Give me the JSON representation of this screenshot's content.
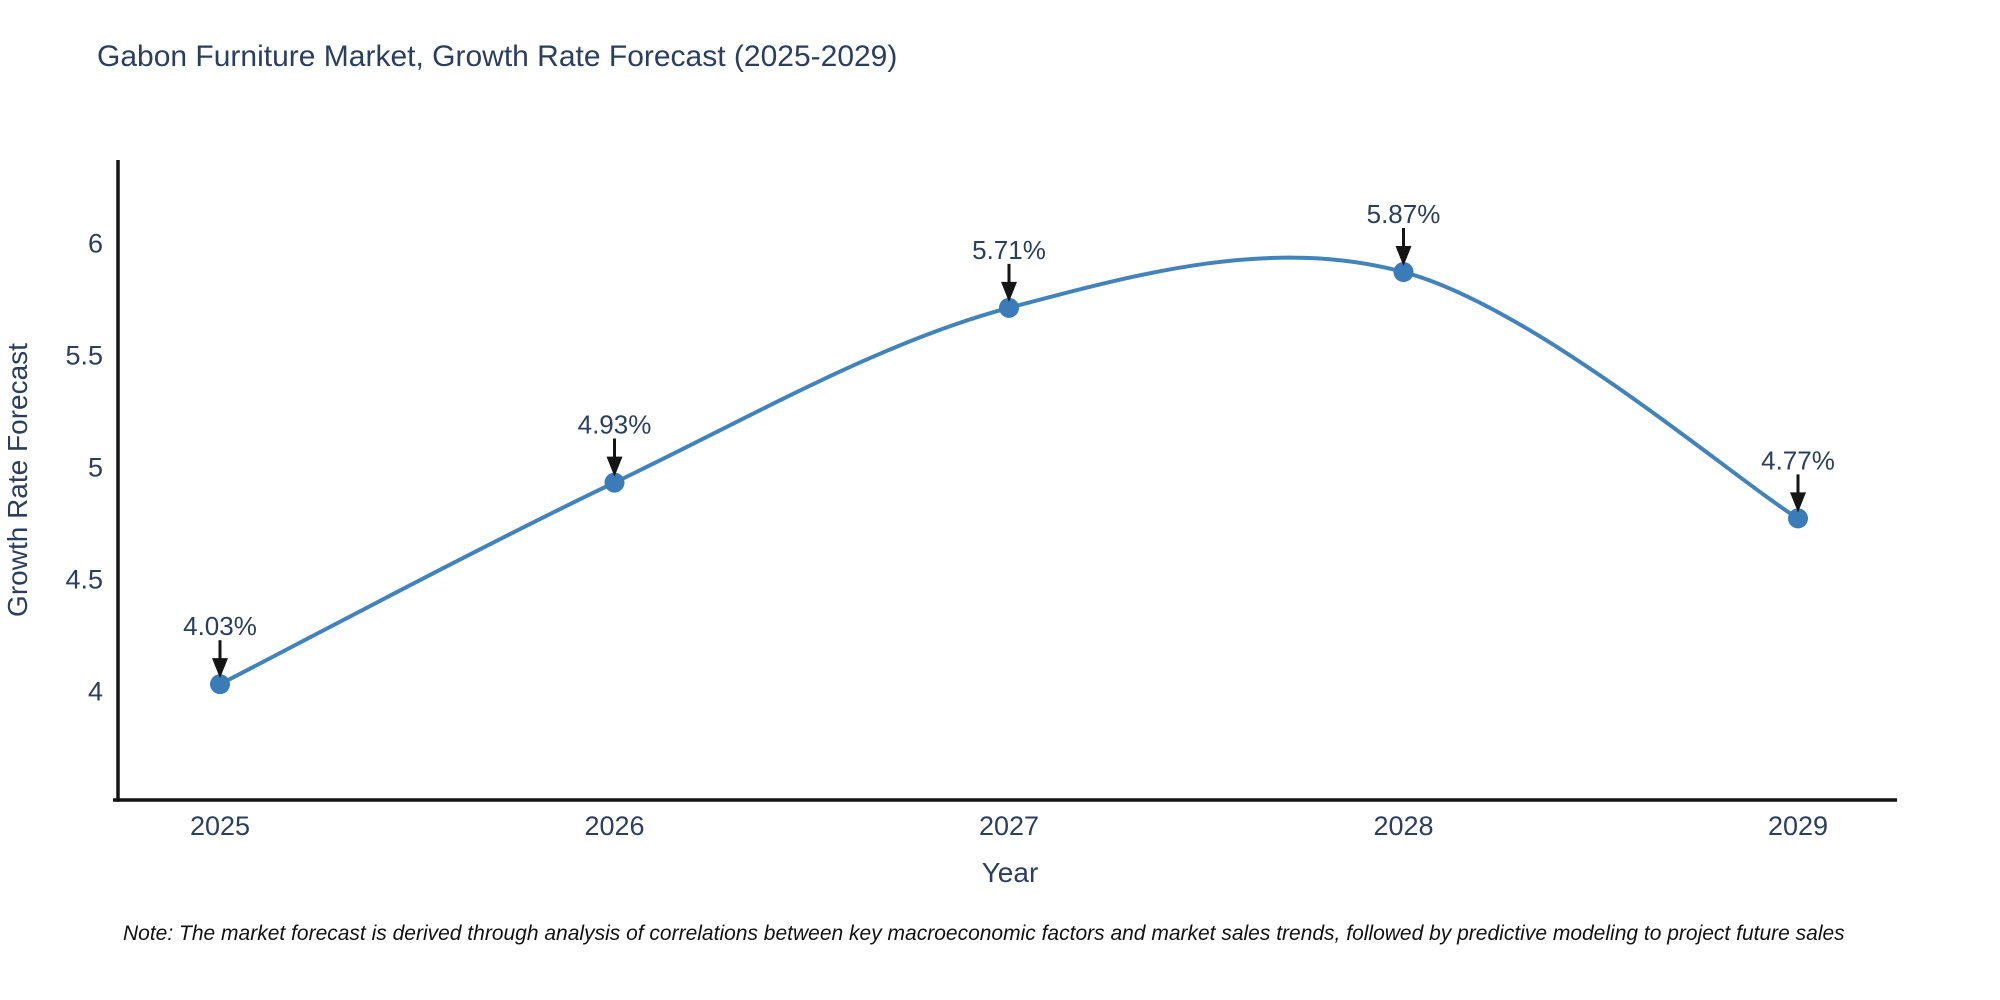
{
  "title": "Gabon Furniture Market, Growth Rate Forecast (2025-2029)",
  "note": "Note: The market forecast is derived through analysis of correlations between key macroeconomic factors and market sales trends, followed by predictive modeling to project future sales",
  "chart_data": {
    "type": "line",
    "title": "Gabon Furniture Market, Growth Rate Forecast (2025-2029)",
    "x": [
      "2025",
      "2026",
      "2027",
      "2028",
      "2029"
    ],
    "values": [
      4.03,
      4.93,
      5.71,
      5.87,
      4.77
    ],
    "point_labels": [
      "4.03%",
      "4.93%",
      "5.71%",
      "5.87%",
      "4.77%"
    ],
    "xlabel": "Year",
    "ylabel": "Growth Rate Forecast",
    "yticks": [
      4,
      4.5,
      5,
      5.5,
      6
    ],
    "ylim": [
      3.513,
      6.37
    ],
    "line_shape": "spline",
    "grid": false,
    "legend": "none",
    "colors": {
      "line": "#4383bb",
      "marker": "#3a7bb8",
      "axis": "#151515",
      "arrow": "#151515",
      "text": "#2a3f5f"
    }
  }
}
